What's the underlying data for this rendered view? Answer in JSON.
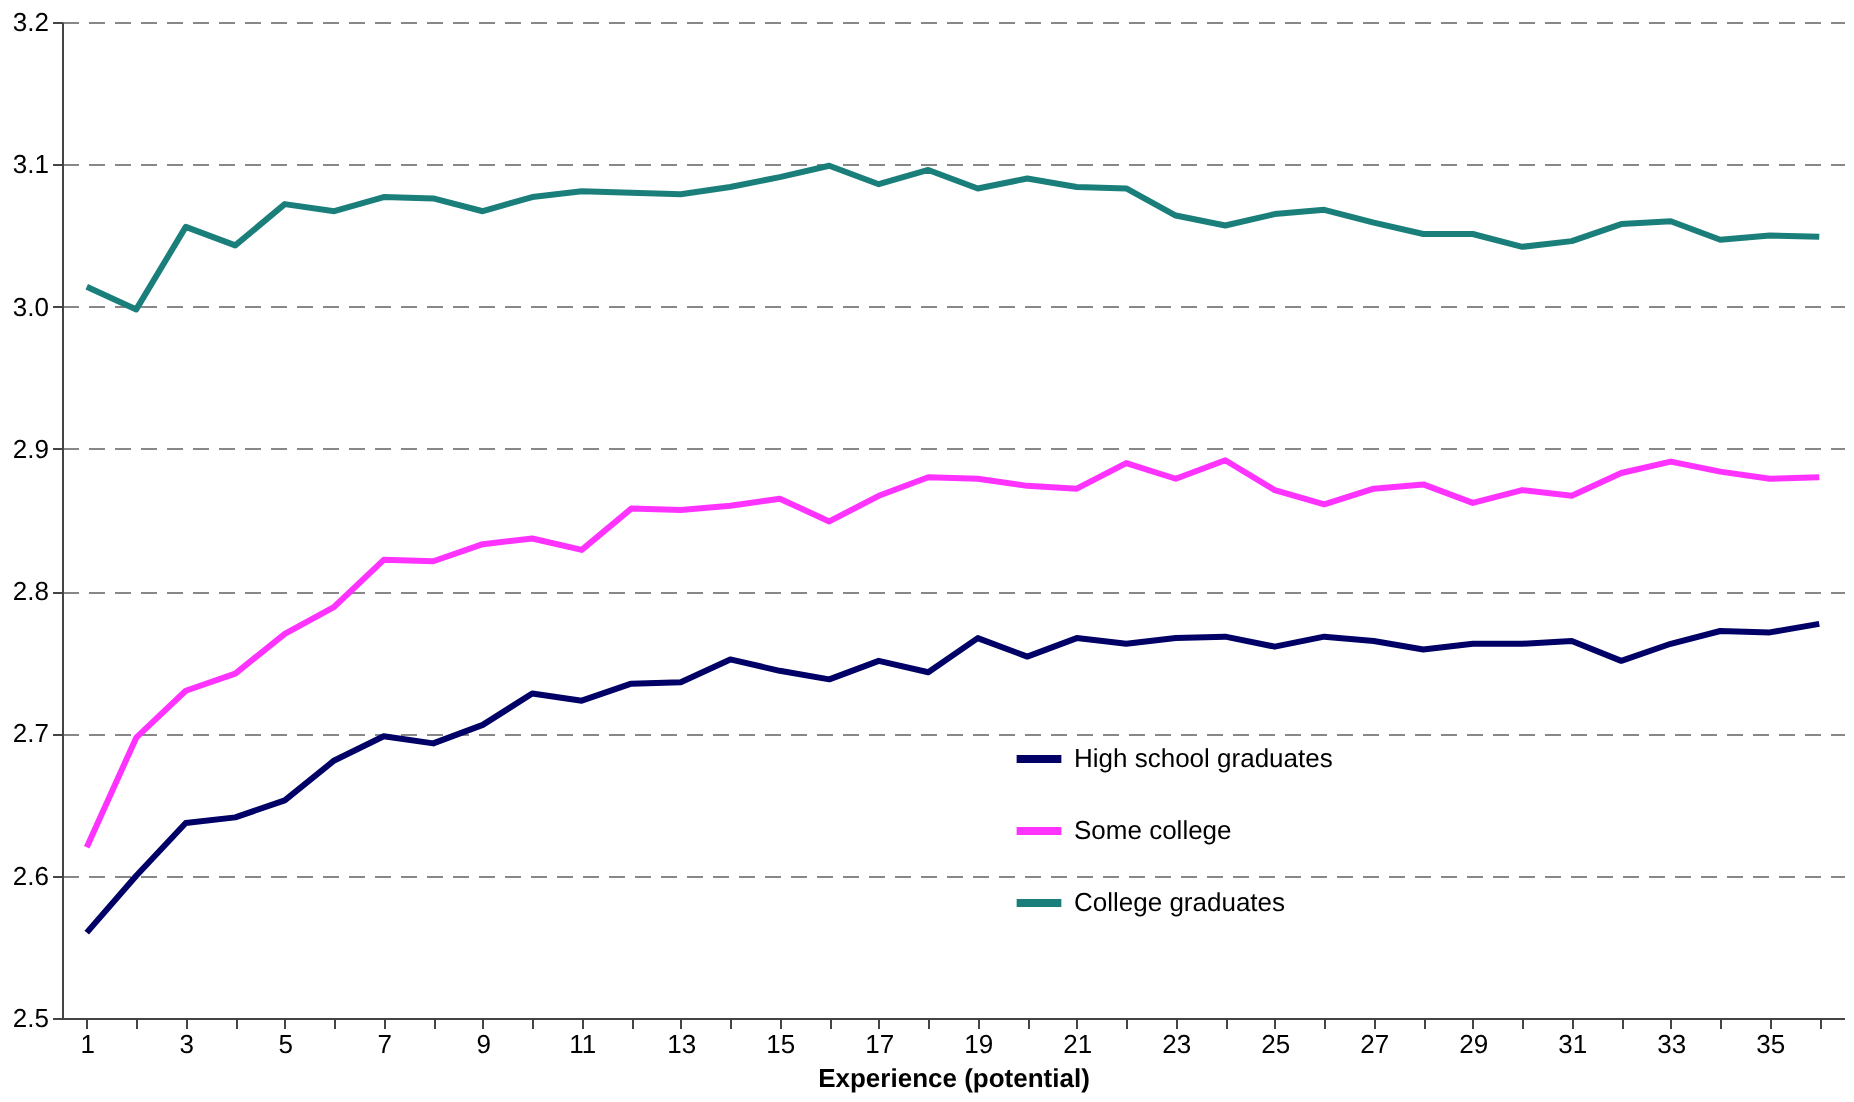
{
  "chart_data": {
    "type": "line",
    "xlabel": "Experience (potential)",
    "x": [
      1,
      2,
      3,
      4,
      5,
      6,
      7,
      8,
      9,
      10,
      11,
      12,
      13,
      14,
      15,
      16,
      17,
      18,
      19,
      20,
      21,
      22,
      23,
      24,
      25,
      26,
      27,
      28,
      29,
      30,
      31,
      32,
      33,
      34,
      35,
      36
    ],
    "series": [
      {
        "name": "High school graduates",
        "color": "#000066",
        "values": [
          2.56,
          2.6,
          2.637,
          2.641,
          2.653,
          2.681,
          2.698,
          2.693,
          2.706,
          2.728,
          2.723,
          2.735,
          2.736,
          2.752,
          2.744,
          2.738,
          2.751,
          2.743,
          2.767,
          2.754,
          2.767,
          2.763,
          2.767,
          2.768,
          2.761,
          2.768,
          2.765,
          2.759,
          2.763,
          2.763,
          2.765,
          2.751,
          2.763,
          2.772,
          2.771,
          2.777
        ]
      },
      {
        "name": "Some college",
        "color": "#ff33ff",
        "values": [
          2.62,
          2.697,
          2.73,
          2.742,
          2.77,
          2.789,
          2.822,
          2.821,
          2.833,
          2.837,
          2.829,
          2.858,
          2.857,
          2.86,
          2.865,
          2.849,
          2.867,
          2.88,
          2.879,
          2.874,
          2.872,
          2.89,
          2.879,
          2.892,
          2.871,
          2.861,
          2.872,
          2.875,
          2.862,
          2.871,
          2.867,
          2.883,
          2.891,
          2.884,
          2.879,
          2.88
        ]
      },
      {
        "name": "College graduates",
        "color": "#1a7f7a",
        "values": [
          3.014,
          2.998,
          3.056,
          3.043,
          3.072,
          3.067,
          3.077,
          3.076,
          3.067,
          3.077,
          3.081,
          3.08,
          3.079,
          3.084,
          3.091,
          3.099,
          3.086,
          3.096,
          3.083,
          3.09,
          3.084,
          3.083,
          3.064,
          3.057,
          3.065,
          3.068,
          3.059,
          3.051,
          3.051,
          3.042,
          3.046,
          3.058,
          3.06,
          3.047,
          3.05,
          3.049
        ]
      }
    ],
    "xlim": [
      0.5,
      36.5
    ],
    "xticks": [
      1,
      {
        "value": 2,
        "label": null
      },
      3,
      {
        "value": 4,
        "label": null
      },
      5,
      {
        "value": 6,
        "label": null
      },
      7,
      {
        "value": 8,
        "label": null
      },
      9,
      {
        "value": 10,
        "label": null
      },
      11,
      {
        "value": 12,
        "label": null
      },
      13,
      {
        "value": 14,
        "label": null
      },
      15,
      {
        "value": 16,
        "label": null
      },
      17,
      {
        "value": 18,
        "label": null
      },
      19,
      {
        "value": 20,
        "label": null
      },
      21,
      {
        "value": 22,
        "label": null
      },
      23,
      {
        "value": 24,
        "label": null
      },
      25,
      {
        "value": 26,
        "label": null
      },
      27,
      {
        "value": 28,
        "label": null
      },
      29,
      {
        "value": 30,
        "label": null
      },
      31,
      {
        "value": 32,
        "label": null
      },
      33,
      {
        "value": 34,
        "label": null
      },
      35,
      {
        "value": 36,
        "label": null
      }
    ],
    "ylim": [
      2.5,
      3.2
    ],
    "yticks": [
      {
        "value": 2.5,
        "label": "2.5"
      },
      {
        "value": 2.6,
        "label": "2.6"
      },
      {
        "value": 2.7,
        "label": "2.7"
      },
      {
        "value": 2.8,
        "label": "2.8"
      },
      {
        "value": 2.9,
        "label": "2.9"
      },
      {
        "value": 3.0,
        "label": "3.0"
      },
      {
        "value": 3.1,
        "label": "3.1"
      },
      {
        "value": 3.2,
        "label": "3.2"
      }
    ],
    "grid": "y",
    "legend": "bottom right",
    "marker": "none",
    "line_style": "solid"
  }
}
